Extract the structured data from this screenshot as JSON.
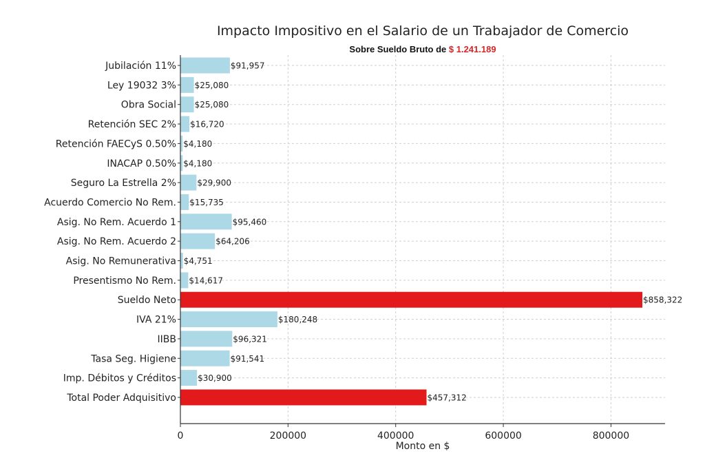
{
  "chart_data": {
    "type": "bar",
    "orientation": "horizontal",
    "title": "Impacto Impositivo en el Salario de un Trabajador de Comercio",
    "subtitle_prefix": "Sobre Sueldo Bruto de ",
    "subtitle_amount": "$ 1.241.189",
    "xlabel": "Monto en $",
    "ylabel": "",
    "xlim": [
      0,
      900000
    ],
    "xticks": [
      0,
      200000,
      400000,
      600000,
      800000
    ],
    "xtick_labels": [
      "0",
      "200000",
      "400000",
      "600000",
      "800000"
    ],
    "grid": true,
    "colors": {
      "default": "#add8e6",
      "highlight": "#e31a1c",
      "subtitle_amount": "#d62728"
    },
    "categories": [
      "Jubilación 11%",
      "Ley 19032 3%",
      "Obra Social",
      "Retención SEC 2%",
      "Retención FAECyS 0.50%",
      "INACAP 0.50%",
      "Seguro La Estrella 2%",
      "Acuerdo Comercio No Rem.",
      "Asig. No Rem. Acuerdo 1",
      "Asig. No Rem. Acuerdo 2",
      "Asig. No Remunerativa",
      "Presentismo No Rem.",
      "Sueldo Neto",
      "IVA 21%",
      "IIBB",
      "Tasa Seg. Higiene",
      "Imp. Débitos y Créditos",
      "Total Poder Adquisitivo"
    ],
    "values": [
      91957,
      25080,
      25080,
      16720,
      4180,
      4180,
      29900,
      15735,
      95460,
      64206,
      4751,
      14617,
      858322,
      180248,
      96321,
      91541,
      30900,
      457312
    ],
    "value_labels": [
      "$91,957",
      "$25,080",
      "$25,080",
      "$16,720",
      "$4,180",
      "$4,180",
      "$29,900",
      "$15,735",
      "$95,460",
      "$64,206",
      "$4,751",
      "$14,617",
      "$858,322",
      "$180,248",
      "$96,321",
      "$91,541",
      "$30,900",
      "$457,312"
    ],
    "highlighted": [
      "Sueldo Neto",
      "Total Poder Adquisitivo"
    ]
  }
}
